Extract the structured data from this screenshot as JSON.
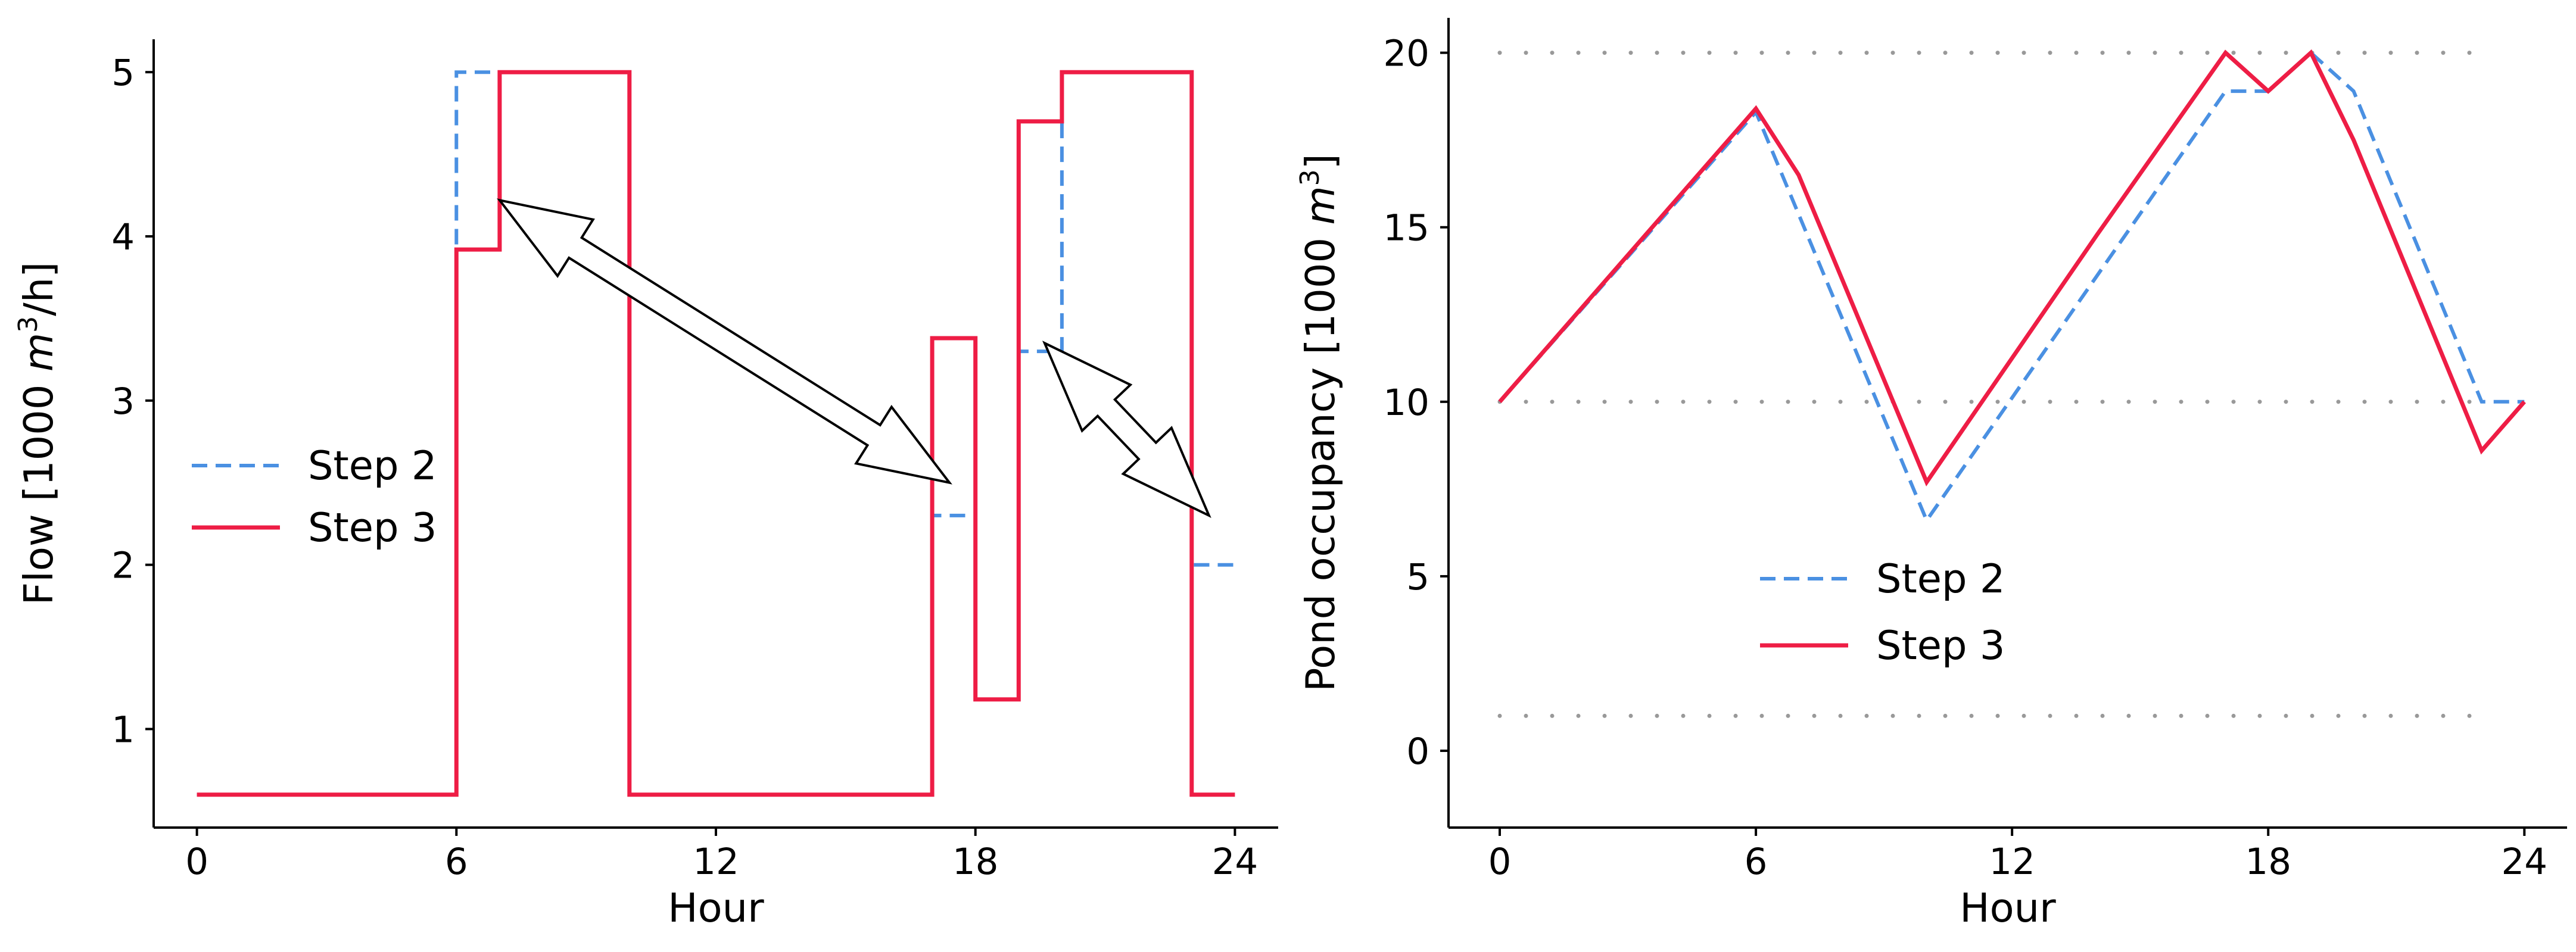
{
  "colors": {
    "step2": "#4a90e2",
    "step3": "#ee1d45",
    "refline": "#999999"
  },
  "chart_data": [
    {
      "type": "line",
      "line_shape": "step",
      "xlabel": "Hour",
      "ylabel_prefix": "Flow [1000 ",
      "ylabel_var": "m",
      "ylabel_sup": "3",
      "ylabel_suffix": "/h]",
      "xlim": [
        -1,
        25
      ],
      "ylim": [
        0.4,
        5.2
      ],
      "xticks": [
        0,
        6,
        12,
        18,
        24
      ],
      "yticks": [
        1,
        2,
        3,
        4,
        5
      ],
      "xtick_labels": [
        "0",
        "6",
        "12",
        "18",
        "24"
      ],
      "ytick_labels": [
        "1",
        "2",
        "3",
        "4",
        "5"
      ],
      "legend": {
        "position": "center-left",
        "entries": [
          "Step 2",
          "Step 3"
        ]
      },
      "series": [
        {
          "name": "Step 2",
          "style": "dashed",
          "points": [
            [
              0,
              0.6
            ],
            [
              6,
              0.6
            ],
            [
              6,
              5.0
            ],
            [
              7,
              5.0
            ],
            [
              7,
              5.0
            ],
            [
              10,
              5.0
            ],
            [
              10,
              0.6
            ],
            [
              17,
              0.6
            ],
            [
              17,
              2.3
            ],
            [
              18,
              2.3
            ],
            [
              18,
              1.18
            ],
            [
              19,
              1.18
            ],
            [
              19,
              3.3
            ],
            [
              20,
              3.3
            ],
            [
              20,
              5.0
            ],
            [
              23,
              5.0
            ],
            [
              23,
              2.0
            ],
            [
              24,
              2.0
            ]
          ]
        },
        {
          "name": "Step 3",
          "style": "solid",
          "points": [
            [
              0,
              0.6
            ],
            [
              6,
              0.6
            ],
            [
              6,
              3.92
            ],
            [
              7,
              3.92
            ],
            [
              7,
              5.0
            ],
            [
              10,
              5.0
            ],
            [
              10,
              0.6
            ],
            [
              17,
              0.6
            ],
            [
              17,
              3.38
            ],
            [
              18,
              3.38
            ],
            [
              18,
              1.18
            ],
            [
              19,
              1.18
            ],
            [
              19,
              4.7
            ],
            [
              20,
              4.7
            ],
            [
              20,
              5.0
            ],
            [
              23,
              5.0
            ],
            [
              23,
              0.6
            ],
            [
              24,
              0.6
            ]
          ]
        }
      ],
      "annotations": [
        {
          "type": "double-arrow",
          "from": [
            7,
            4.22
          ],
          "to": [
            17.4,
            2.5
          ]
        },
        {
          "type": "double-arrow",
          "from": [
            19.6,
            3.35
          ],
          "to": [
            23.4,
            2.3
          ]
        }
      ]
    },
    {
      "type": "line",
      "xlabel": "Hour",
      "ylabel_prefix": "Pond occupancy [1000 ",
      "ylabel_var": "m",
      "ylabel_sup": "3",
      "ylabel_suffix": "]",
      "xlim": [
        -1.2,
        25
      ],
      "ylim": [
        -2.2,
        21
      ],
      "xticks": [
        0,
        6,
        12,
        18,
        24
      ],
      "yticks": [
        0,
        5,
        10,
        15,
        20
      ],
      "xtick_labels": [
        "0",
        "6",
        "12",
        "18",
        "24"
      ],
      "ytick_labels": [
        "0",
        "5",
        "10",
        "15",
        "20"
      ],
      "reference_lines": [
        {
          "y": 20,
          "x_range": [
            0,
            23.2
          ],
          "style": "dotted"
        },
        {
          "y": 10,
          "x_range": [
            0,
            23.2
          ],
          "style": "dotted"
        },
        {
          "y": 1,
          "x_range": [
            0,
            23.2
          ],
          "style": "dotted"
        }
      ],
      "legend": {
        "position": "lower-center",
        "entries": [
          "Step 2",
          "Step 3"
        ]
      },
      "series": [
        {
          "name": "Step 2",
          "style": "dashed",
          "points": [
            [
              0,
              10
            ],
            [
              6,
              18.3
            ],
            [
              10,
              6.6
            ],
            [
              17,
              18.9
            ],
            [
              18,
              18.9
            ],
            [
              19,
              20
            ],
            [
              20,
              18.9
            ],
            [
              23,
              10
            ],
            [
              24,
              10
            ]
          ]
        },
        {
          "name": "Step 3",
          "style": "solid",
          "points": [
            [
              0,
              10
            ],
            [
              6,
              18.4
            ],
            [
              7,
              16.5
            ],
            [
              10,
              7.7
            ],
            [
              14,
              14.8
            ],
            [
              17,
              20
            ],
            [
              18,
              18.9
            ],
            [
              19,
              20
            ],
            [
              20,
              17.5
            ],
            [
              23,
              8.6
            ],
            [
              24,
              10
            ]
          ]
        }
      ]
    }
  ]
}
